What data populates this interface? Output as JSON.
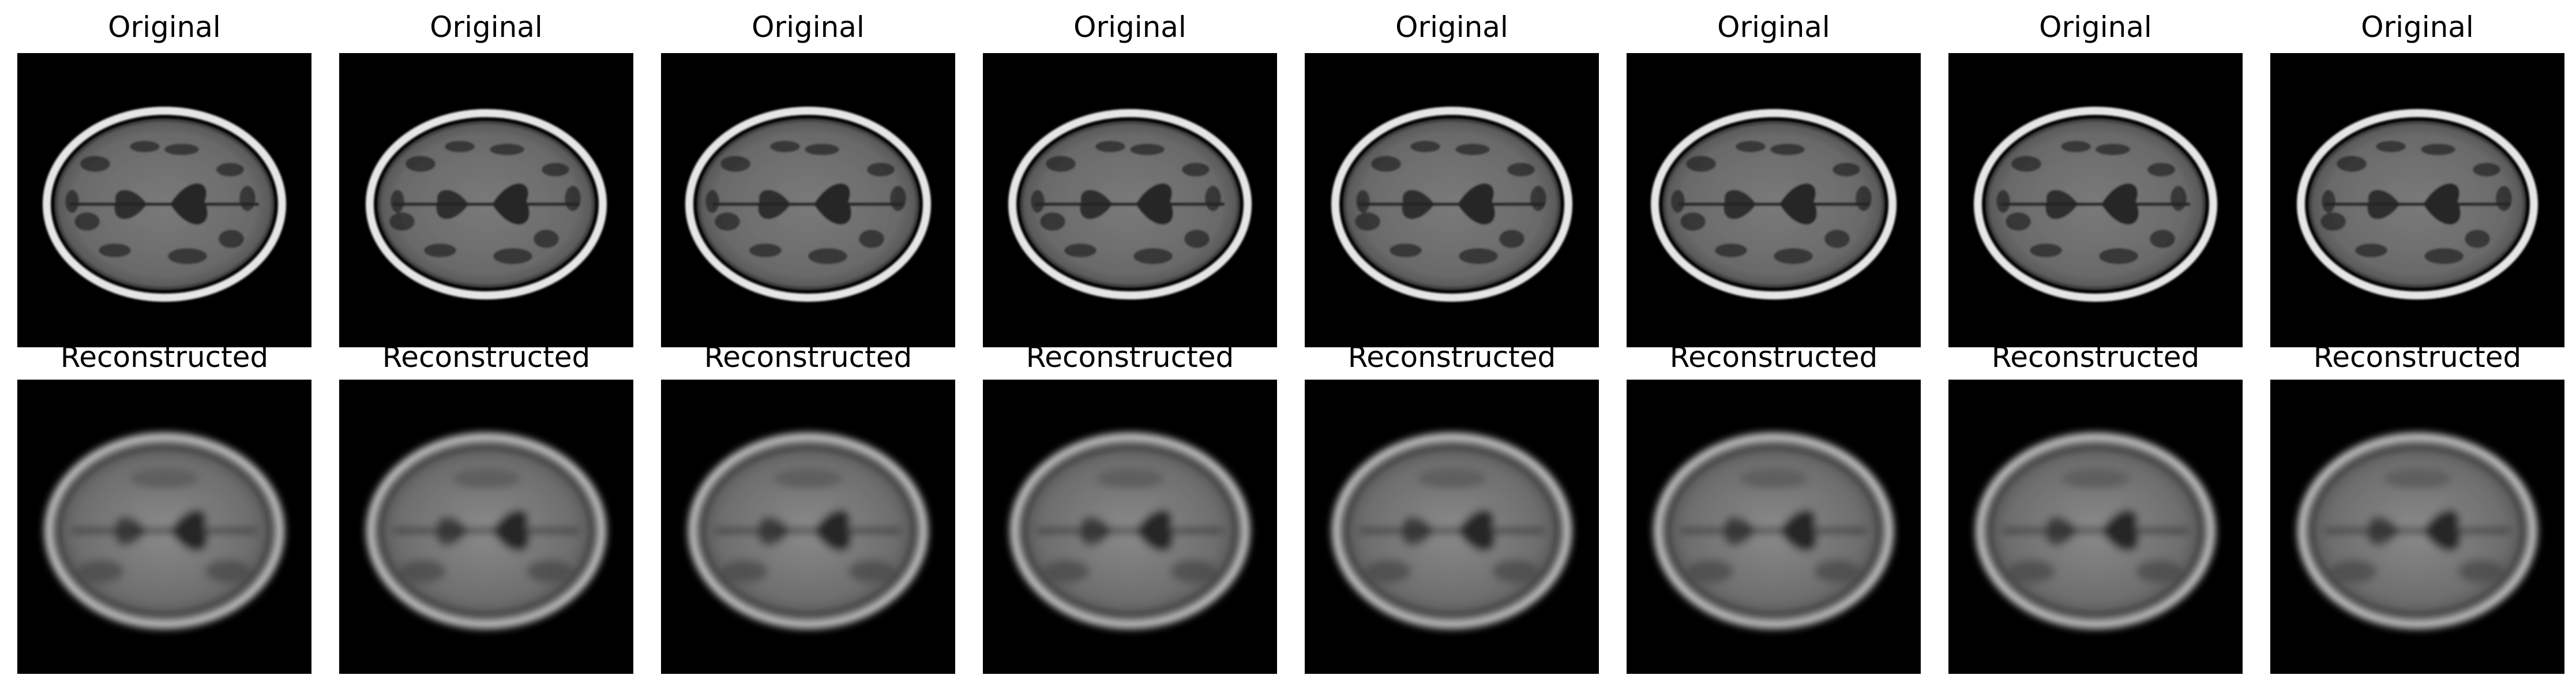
{
  "figure": {
    "rows": [
      {
        "kind": "original",
        "titles": [
          "Original",
          "Original",
          "Original",
          "Original",
          "Original",
          "Original",
          "Original",
          "Original"
        ]
      },
      {
        "kind": "reconstructed",
        "titles": [
          "Reconstructed",
          "Reconstructed",
          "Reconstructed",
          "Reconstructed",
          "Reconstructed",
          "Reconstructed",
          "Reconstructed",
          "Reconstructed"
        ]
      }
    ],
    "image_description_semantic": "axial-brain-mri-slice",
    "colors": {
      "background": "#ffffff",
      "image_background": "#000000",
      "skull": "#e6e6e6",
      "tissue": "#6a6a6a",
      "dark_structures": "#262626"
    }
  }
}
